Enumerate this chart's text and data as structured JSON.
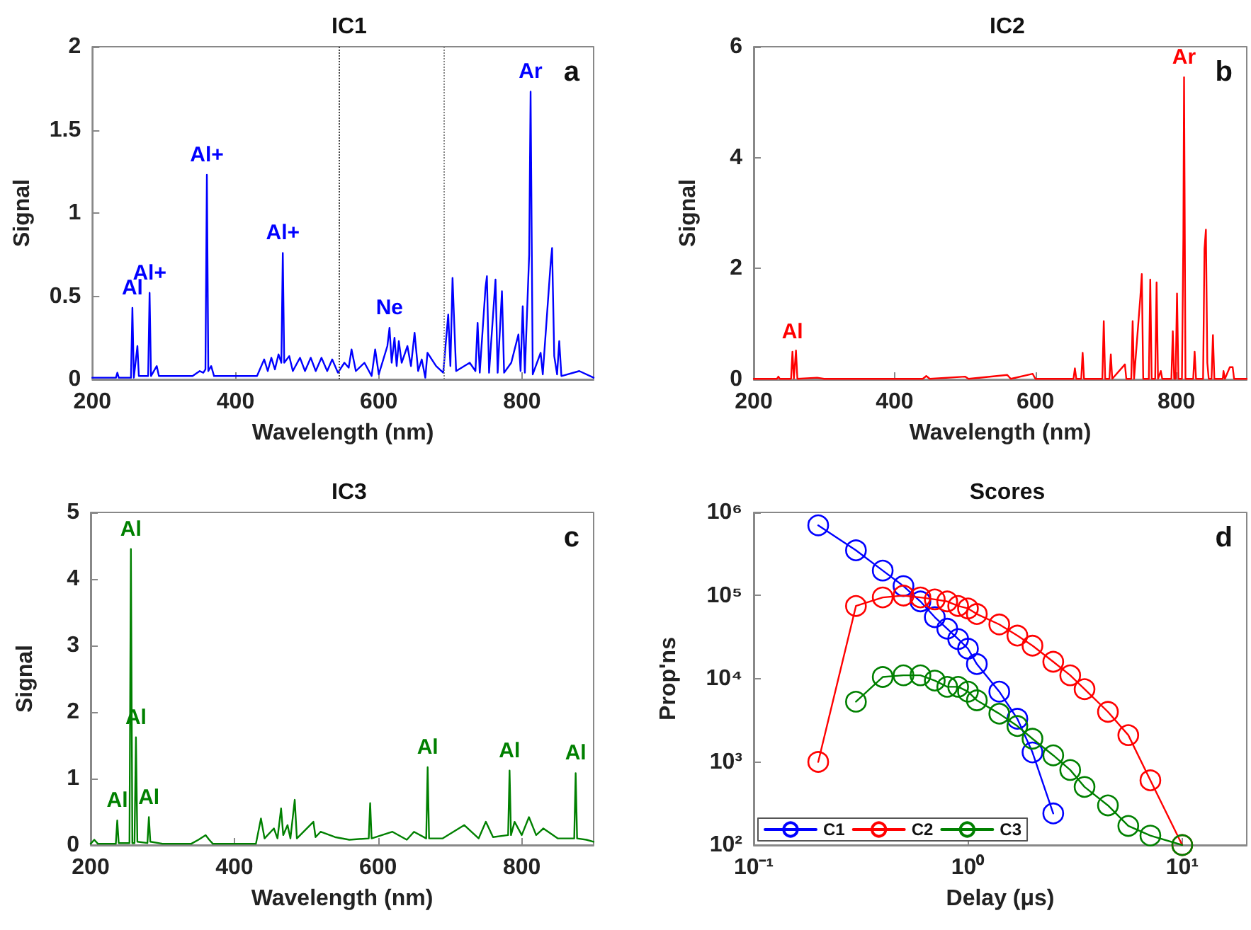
{
  "chart_data": [
    {
      "type": "line",
      "title": "IC1",
      "xlabel": "Wavelength (nm)",
      "ylabel": "Signal",
      "xlim": [
        200,
        900
      ],
      "xticks": [
        200,
        400,
        600,
        800
      ],
      "ylim": [
        0,
        2
      ],
      "yticks": [
        0,
        0.5,
        1,
        1.5,
        2
      ],
      "grid": false,
      "legend": false,
      "marker": "none",
      "line_style": "solid",
      "series": [
        {
          "color": "#0000ff",
          "x": [
            200,
            233,
            235,
            237,
            254,
            256,
            258,
            263,
            265,
            278,
            280,
            282,
            290,
            293,
            340,
            350,
            355,
            358,
            360,
            362,
            366,
            370,
            430,
            440,
            445,
            450,
            455,
            460,
            464,
            466,
            468,
            475,
            480,
            490,
            497,
            505,
            512,
            520,
            528,
            535,
            543,
            552,
            558,
            562,
            568,
            580,
            590,
            595,
            600,
            612,
            615,
            618,
            622,
            625,
            628,
            632,
            640,
            645,
            650,
            655,
            660,
            665,
            668,
            680,
            690,
            697,
            700,
            703,
            705,
            708,
            727,
            735,
            738,
            741,
            749,
            751,
            754,
            763,
            766,
            772,
            775,
            785,
            795,
            798,
            801,
            804,
            810,
            812,
            815,
            826,
            829,
            840,
            842,
            845,
            849,
            852,
            855,
            880,
            900
          ],
          "values": [
            0.01,
            0.01,
            0.04,
            0.01,
            0.01,
            0.43,
            0.01,
            0.2,
            0.02,
            0.02,
            0.52,
            0.02,
            0.08,
            0.02,
            0.02,
            0.05,
            0.04,
            0.06,
            1.23,
            0.05,
            0.08,
            0.02,
            0.02,
            0.12,
            0.05,
            0.13,
            0.06,
            0.15,
            0.1,
            0.76,
            0.1,
            0.14,
            0.05,
            0.13,
            0.05,
            0.13,
            0.05,
            0.13,
            0.05,
            0.12,
            0.04,
            0.1,
            0.07,
            0.18,
            0.05,
            0.1,
            0.02,
            0.18,
            0.03,
            0.2,
            0.31,
            0.1,
            0.25,
            0.08,
            0.23,
            0.1,
            0.2,
            0.08,
            0.28,
            0.05,
            0.12,
            0.01,
            0.16,
            0.08,
            0.04,
            0.39,
            0.08,
            0.61,
            0.38,
            0.05,
            0.1,
            0.05,
            0.34,
            0.04,
            0.55,
            0.62,
            0.04,
            0.6,
            0.04,
            0.53,
            0.04,
            0.1,
            0.27,
            0.05,
            0.44,
            0.04,
            0.75,
            1.73,
            0.03,
            0.16,
            0.03,
            0.7,
            0.79,
            0.14,
            0.03,
            0.23,
            0.02,
            0.05,
            0.01
          ]
        }
      ],
      "ref_lines": [
        {
          "axis": "x",
          "value": 545,
          "color": "#444444",
          "line_style": "dotted"
        },
        {
          "axis": "x",
          "value": 690,
          "color": "#888888",
          "line_style": "dotted"
        }
      ],
      "annotations": [
        "a",
        {
          "text": "Al",
          "x": 256,
          "y": 0.43
        },
        {
          "text": "Al+",
          "x": 280,
          "y": 0.52
        },
        {
          "text": "Al+",
          "x": 360,
          "y": 1.23
        },
        {
          "text": "Al+",
          "x": 466,
          "y": 0.76
        },
        {
          "text": "Ne",
          "x": 615,
          "y": 0.31
        },
        {
          "text": "Ar",
          "x": 812,
          "y": 1.73
        }
      ]
    },
    {
      "type": "line",
      "title": "IC2",
      "xlabel": "Wavelength (nm)",
      "ylabel": "Signal",
      "xlim": [
        200,
        900
      ],
      "xticks": [
        200,
        400,
        600,
        800
      ],
      "ylim": [
        0,
        6
      ],
      "yticks": [
        0,
        2,
        4,
        6
      ],
      "grid": false,
      "legend": false,
      "marker": "none",
      "line_style": "solid",
      "series": [
        {
          "color": "#ff0000",
          "x": [
            200,
            233,
            235,
            237,
            253,
            255,
            257,
            260,
            262,
            290,
            300,
            440,
            445,
            450,
            500,
            505,
            560,
            565,
            596,
            600,
            654,
            656,
            658,
            665,
            667,
            669,
            695,
            697,
            699,
            705,
            707,
            709,
            727,
            729,
            736,
            738,
            740,
            749,
            751,
            753,
            761,
            763,
            765,
            770,
            772,
            774,
            778,
            780,
            793,
            795,
            797,
            799,
            801,
            803,
            808,
            810,
            811,
            813,
            824,
            826,
            828,
            838,
            840,
            842,
            844,
            846,
            850,
            852,
            854,
            866,
            867,
            869,
            876,
            880,
            882,
            900
          ],
          "values": [
            0.01,
            0.01,
            0.05,
            0.01,
            0.01,
            0.5,
            0.01,
            0.52,
            0.01,
            0.03,
            0.01,
            0.01,
            0.06,
            0.01,
            0.05,
            0.01,
            0.08,
            0.01,
            0.1,
            0.01,
            0.01,
            0.2,
            0.01,
            0.01,
            0.48,
            0.01,
            0.01,
            1.05,
            0.01,
            0.01,
            0.45,
            0.01,
            0.27,
            0.01,
            0.01,
            1.05,
            0.01,
            1.5,
            1.9,
            0.01,
            0.01,
            1.8,
            0.01,
            0.01,
            1.75,
            0.01,
            0.15,
            0.01,
            0.01,
            0.87,
            0.01,
            0.01,
            1.55,
            0.01,
            0.01,
            2.55,
            5.45,
            0.01,
            0.01,
            0.5,
            0.01,
            0.01,
            2.35,
            2.7,
            0.3,
            0.01,
            0.01,
            0.8,
            0.01,
            0.01,
            0.15,
            0.01,
            0.22,
            0.22,
            0.01,
            0.01
          ]
        }
      ],
      "annotations": [
        "b",
        {
          "text": "Al",
          "x": 255,
          "y": 0.5
        },
        {
          "text": "Ar",
          "x": 811,
          "y": 5.45
        }
      ]
    },
    {
      "type": "line",
      "title": "IC3",
      "xlabel": "Wavelength (nm)",
      "ylabel": "Signal",
      "xlim": [
        200,
        900
      ],
      "xticks": [
        200,
        400,
        600,
        800
      ],
      "ylim": [
        0,
        5
      ],
      "yticks": [
        0,
        1,
        2,
        3,
        4,
        5
      ],
      "grid": false,
      "legend": false,
      "marker": "none",
      "line_style": "solid",
      "series": [
        {
          "color": "#008000",
          "x": [
            200,
            205,
            210,
            235,
            237,
            239,
            254,
            256,
            258,
            261,
            263,
            265,
            279,
            281,
            283,
            300,
            340,
            350,
            360,
            365,
            370,
            430,
            437,
            442,
            455,
            460,
            465,
            468,
            474,
            478,
            484,
            487,
            510,
            513,
            520,
            540,
            560,
            587,
            589,
            591,
            620,
            640,
            650,
            667,
            669,
            671,
            690,
            720,
            740,
            750,
            760,
            781,
            783,
            785,
            790,
            800,
            810,
            820,
            830,
            850,
            873,
            875,
            877,
            890,
            900
          ],
          "values": [
            0.02,
            0.08,
            0.02,
            0.02,
            0.37,
            0.03,
            0.03,
            4.45,
            0.03,
            0.03,
            1.62,
            0.05,
            0.03,
            0.42,
            0.05,
            0.02,
            0.02,
            0.08,
            0.15,
            0.08,
            0.02,
            0.02,
            0.4,
            0.1,
            0.25,
            0.1,
            0.55,
            0.15,
            0.3,
            0.1,
            0.68,
            0.1,
            0.35,
            0.12,
            0.2,
            0.12,
            0.08,
            0.1,
            0.63,
            0.1,
            0.2,
            0.08,
            0.2,
            0.1,
            1.17,
            0.1,
            0.1,
            0.3,
            0.1,
            0.35,
            0.12,
            0.15,
            1.12,
            0.15,
            0.35,
            0.15,
            0.42,
            0.15,
            0.25,
            0.1,
            0.1,
            1.08,
            0.1,
            0.08,
            0.05
          ]
        }
      ],
      "annotations": [
        "c",
        {
          "text": "Al",
          "x": 256,
          "y": 4.45
        },
        {
          "text": "Al",
          "x": 237,
          "y": 0.37
        },
        {
          "text": "Al",
          "x": 263,
          "y": 1.62
        },
        {
          "text": "Al",
          "x": 281,
          "y": 0.42
        },
        {
          "text": "Al",
          "x": 669,
          "y": 1.17
        },
        {
          "text": "Al",
          "x": 783,
          "y": 1.12
        },
        {
          "text": "Al",
          "x": 875,
          "y": 1.08
        }
      ]
    },
    {
      "type": "line",
      "title": "Scores",
      "xlabel": "Delay (μs)",
      "ylabel": "Prop'ns",
      "log": "xy",
      "xlim": [
        0.1,
        20
      ],
      "xticks": [
        {
          "value": 0.1,
          "label": "10⁻¹"
        },
        {
          "value": 1,
          "label": "10⁰"
        },
        {
          "value": 10,
          "label": "10¹"
        }
      ],
      "ylim": [
        100,
        1000000
      ],
      "yticks": [
        {
          "value": 100,
          "label": "10²"
        },
        {
          "value": 1000,
          "label": "10³"
        },
        {
          "value": 10000,
          "label": "10⁴"
        },
        {
          "value": 100000,
          "label": "10⁵"
        },
        {
          "value": 1000000,
          "label": "10⁶"
        }
      ],
      "grid": false,
      "legend": "bottom left",
      "marker": "circle",
      "line_style": "solid",
      "series": [
        {
          "name": "C1",
          "color": "#0000ff",
          "x": [
            0.2,
            0.3,
            0.4,
            0.5,
            0.6,
            0.7,
            0.8,
            0.9,
            1.0,
            1.1,
            1.4,
            1.7,
            2.0,
            2.5
          ],
          "values": [
            700000,
            350000,
            200000,
            130000,
            85000,
            55000,
            40000,
            30000,
            23000,
            15000,
            7000,
            3300,
            1300,
            240
          ]
        },
        {
          "name": "C2",
          "color": "#ff0000",
          "x": [
            0.2,
            0.3,
            0.4,
            0.5,
            0.6,
            0.7,
            0.8,
            0.9,
            1.0,
            1.1,
            1.4,
            1.7,
            2.0,
            2.5,
            3.0,
            3.5,
            4.5,
            5.6,
            7.1,
            10
          ],
          "values": [
            1000,
            75000,
            95000,
            100000,
            95000,
            90000,
            85000,
            75000,
            70000,
            60000,
            45000,
            33000,
            25000,
            16000,
            11000,
            7500,
            4000,
            2100,
            600,
            100
          ]
        },
        {
          "name": "C3",
          "color": "#008000",
          "x": [
            0.3,
            0.4,
            0.5,
            0.6,
            0.7,
            0.8,
            0.9,
            1.0,
            1.1,
            1.4,
            1.7,
            2.0,
            2.5,
            3.0,
            3.5,
            4.5,
            5.6,
            7.1,
            10
          ],
          "values": [
            5300,
            10500,
            11000,
            11000,
            9500,
            8000,
            8000,
            7000,
            5500,
            3800,
            2700,
            1900,
            1200,
            800,
            500,
            300,
            170,
            130,
            100
          ]
        }
      ],
      "annotations": [
        "d"
      ]
    }
  ]
}
